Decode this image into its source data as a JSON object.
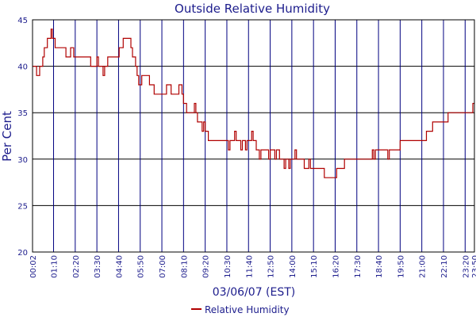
{
  "chart_data": {
    "type": "line",
    "title": "Outside Relative Humidity",
    "xlabel": "03/06/07 (EST)",
    "ylabel": "Per Cent",
    "ylim": [
      20,
      45
    ],
    "yticks": [
      "20",
      "25",
      "30",
      "35",
      "40",
      "45"
    ],
    "x_range": [
      "00:02",
      "23:50"
    ],
    "xticks": [
      "00:02",
      "01:10",
      "02:20",
      "03:30",
      "04:40",
      "05:50",
      "07:00",
      "08:10",
      "09:20",
      "10:30",
      "11:40",
      "12:50",
      "14:00",
      "15:10",
      "16:20",
      "17:30",
      "18:40",
      "19:50",
      "21:00",
      "22:10",
      "23:20",
      "23:50"
    ],
    "grid": true,
    "legend_position": "bottom",
    "colors": {
      "line": "#b00000",
      "grid": "#000080",
      "text": "#1c1c8c"
    },
    "series": [
      {
        "name": "Relative Humidity",
        "color": "#b00000",
        "points": [
          [
            "00:02",
            40
          ],
          [
            "00:10",
            40
          ],
          [
            "00:15",
            39
          ],
          [
            "00:20",
            39
          ],
          [
            "00:25",
            40
          ],
          [
            "00:30",
            40
          ],
          [
            "00:35",
            41
          ],
          [
            "00:40",
            42
          ],
          [
            "00:45",
            42
          ],
          [
            "00:50",
            43
          ],
          [
            "00:58",
            43
          ],
          [
            "01:02",
            44
          ],
          [
            "01:06",
            43
          ],
          [
            "01:10",
            43
          ],
          [
            "01:15",
            42
          ],
          [
            "01:25",
            42
          ],
          [
            "01:35",
            42
          ],
          [
            "01:45",
            42
          ],
          [
            "01:50",
            41
          ],
          [
            "02:00",
            41
          ],
          [
            "02:05",
            42
          ],
          [
            "02:10",
            42
          ],
          [
            "02:15",
            41
          ],
          [
            "02:25",
            41
          ],
          [
            "02:40",
            41
          ],
          [
            "02:55",
            41
          ],
          [
            "03:05",
            41
          ],
          [
            "03:10",
            40
          ],
          [
            "03:20",
            40
          ],
          [
            "03:28",
            40
          ],
          [
            "03:30",
            41
          ],
          [
            "03:35",
            40
          ],
          [
            "03:42",
            40
          ],
          [
            "03:50",
            39
          ],
          [
            "03:55",
            40
          ],
          [
            "04:00",
            40
          ],
          [
            "04:05",
            41
          ],
          [
            "04:15",
            41
          ],
          [
            "04:25",
            41
          ],
          [
            "04:35",
            41
          ],
          [
            "04:42",
            42
          ],
          [
            "04:50",
            42
          ],
          [
            "04:55",
            43
          ],
          [
            "05:05",
            43
          ],
          [
            "05:15",
            43
          ],
          [
            "05:20",
            42
          ],
          [
            "05:25",
            41
          ],
          [
            "05:30",
            41
          ],
          [
            "05:35",
            40
          ],
          [
            "05:40",
            39
          ],
          [
            "05:45",
            38
          ],
          [
            "05:50",
            38
          ],
          [
            "05:55",
            39
          ],
          [
            "06:05",
            39
          ],
          [
            "06:15",
            39
          ],
          [
            "06:20",
            38
          ],
          [
            "06:30",
            38
          ],
          [
            "06:35",
            37
          ],
          [
            "06:45",
            37
          ],
          [
            "06:55",
            37
          ],
          [
            "07:05",
            37
          ],
          [
            "07:10",
            37
          ],
          [
            "07:15",
            38
          ],
          [
            "07:25",
            38
          ],
          [
            "07:30",
            37
          ],
          [
            "07:40",
            37
          ],
          [
            "07:50",
            37
          ],
          [
            "07:55",
            38
          ],
          [
            "08:00",
            38
          ],
          [
            "08:05",
            37
          ],
          [
            "08:10",
            36
          ],
          [
            "08:15",
            36
          ],
          [
            "08:20",
            35
          ],
          [
            "08:30",
            35
          ],
          [
            "08:40",
            35
          ],
          [
            "08:45",
            36
          ],
          [
            "08:50",
            35
          ],
          [
            "08:55",
            34
          ],
          [
            "09:00",
            34
          ],
          [
            "09:05",
            34
          ],
          [
            "09:10",
            33
          ],
          [
            "09:15",
            34
          ],
          [
            "09:20",
            33
          ],
          [
            "09:25",
            33
          ],
          [
            "09:30",
            32
          ],
          [
            "09:40",
            32
          ],
          [
            "09:55",
            32
          ],
          [
            "10:10",
            32
          ],
          [
            "10:25",
            32
          ],
          [
            "10:30",
            32
          ],
          [
            "10:35",
            31
          ],
          [
            "10:40",
            32
          ],
          [
            "10:45",
            32
          ],
          [
            "10:50",
            32
          ],
          [
            "10:55",
            33
          ],
          [
            "11:00",
            32
          ],
          [
            "11:10",
            32
          ],
          [
            "11:15",
            31
          ],
          [
            "11:20",
            32
          ],
          [
            "11:25",
            32
          ],
          [
            "11:30",
            31
          ],
          [
            "11:35",
            32
          ],
          [
            "11:40",
            32
          ],
          [
            "11:45",
            32
          ],
          [
            "11:50",
            33
          ],
          [
            "11:55",
            32
          ],
          [
            "12:00",
            32
          ],
          [
            "12:05",
            31
          ],
          [
            "12:10",
            31
          ],
          [
            "12:15",
            30
          ],
          [
            "12:20",
            31
          ],
          [
            "12:30",
            31
          ],
          [
            "12:40",
            31
          ],
          [
            "12:45",
            30
          ],
          [
            "12:50",
            31
          ],
          [
            "13:00",
            31
          ],
          [
            "13:05",
            30
          ],
          [
            "13:10",
            31
          ],
          [
            "13:15",
            31
          ],
          [
            "13:20",
            30
          ],
          [
            "13:25",
            30
          ],
          [
            "13:30",
            30
          ],
          [
            "13:35",
            29
          ],
          [
            "13:40",
            30
          ],
          [
            "13:45",
            30
          ],
          [
            "13:50",
            29
          ],
          [
            "13:55",
            30
          ],
          [
            "14:00",
            30
          ],
          [
            "14:05",
            30
          ],
          [
            "14:10",
            31
          ],
          [
            "14:15",
            30
          ],
          [
            "14:20",
            30
          ],
          [
            "14:25",
            30
          ],
          [
            "14:30",
            30
          ],
          [
            "14:35",
            30
          ],
          [
            "14:40",
            29
          ],
          [
            "14:45",
            29
          ],
          [
            "14:50",
            29
          ],
          [
            "14:55",
            30
          ],
          [
            "15:00",
            29
          ],
          [
            "15:05",
            29
          ],
          [
            "15:10",
            29
          ],
          [
            "15:20",
            29
          ],
          [
            "15:30",
            29
          ],
          [
            "15:40",
            29
          ],
          [
            "15:45",
            28
          ],
          [
            "15:55",
            28
          ],
          [
            "16:05",
            28
          ],
          [
            "16:15",
            28
          ],
          [
            "16:20",
            28
          ],
          [
            "16:25",
            29
          ],
          [
            "16:35",
            29
          ],
          [
            "16:45",
            29
          ],
          [
            "16:50",
            30
          ],
          [
            "17:00",
            30
          ],
          [
            "17:10",
            30
          ],
          [
            "17:20",
            30
          ],
          [
            "17:30",
            30
          ],
          [
            "17:40",
            30
          ],
          [
            "17:50",
            30
          ],
          [
            "18:00",
            30
          ],
          [
            "18:10",
            30
          ],
          [
            "18:15",
            30
          ],
          [
            "18:20",
            31
          ],
          [
            "18:25",
            30
          ],
          [
            "18:30",
            31
          ],
          [
            "18:40",
            31
          ],
          [
            "18:50",
            31
          ],
          [
            "19:00",
            31
          ],
          [
            "19:05",
            31
          ],
          [
            "19:10",
            30
          ],
          [
            "19:15",
            31
          ],
          [
            "19:25",
            31
          ],
          [
            "19:35",
            31
          ],
          [
            "19:45",
            31
          ],
          [
            "19:50",
            32
          ],
          [
            "20:00",
            32
          ],
          [
            "20:10",
            32
          ],
          [
            "20:20",
            32
          ],
          [
            "20:30",
            32
          ],
          [
            "20:40",
            32
          ],
          [
            "20:50",
            32
          ],
          [
            "21:00",
            32
          ],
          [
            "21:10",
            32
          ],
          [
            "21:15",
            33
          ],
          [
            "21:25",
            33
          ],
          [
            "21:35",
            34
          ],
          [
            "21:45",
            34
          ],
          [
            "21:55",
            34
          ],
          [
            "22:05",
            34
          ],
          [
            "22:10",
            34
          ],
          [
            "22:15",
            34
          ],
          [
            "22:25",
            35
          ],
          [
            "22:35",
            35
          ],
          [
            "22:45",
            35
          ],
          [
            "22:55",
            35
          ],
          [
            "23:05",
            35
          ],
          [
            "23:15",
            35
          ],
          [
            "23:25",
            35
          ],
          [
            "23:35",
            35
          ],
          [
            "23:40",
            35
          ],
          [
            "23:45",
            36
          ],
          [
            "23:50",
            36
          ]
        ]
      }
    ]
  }
}
